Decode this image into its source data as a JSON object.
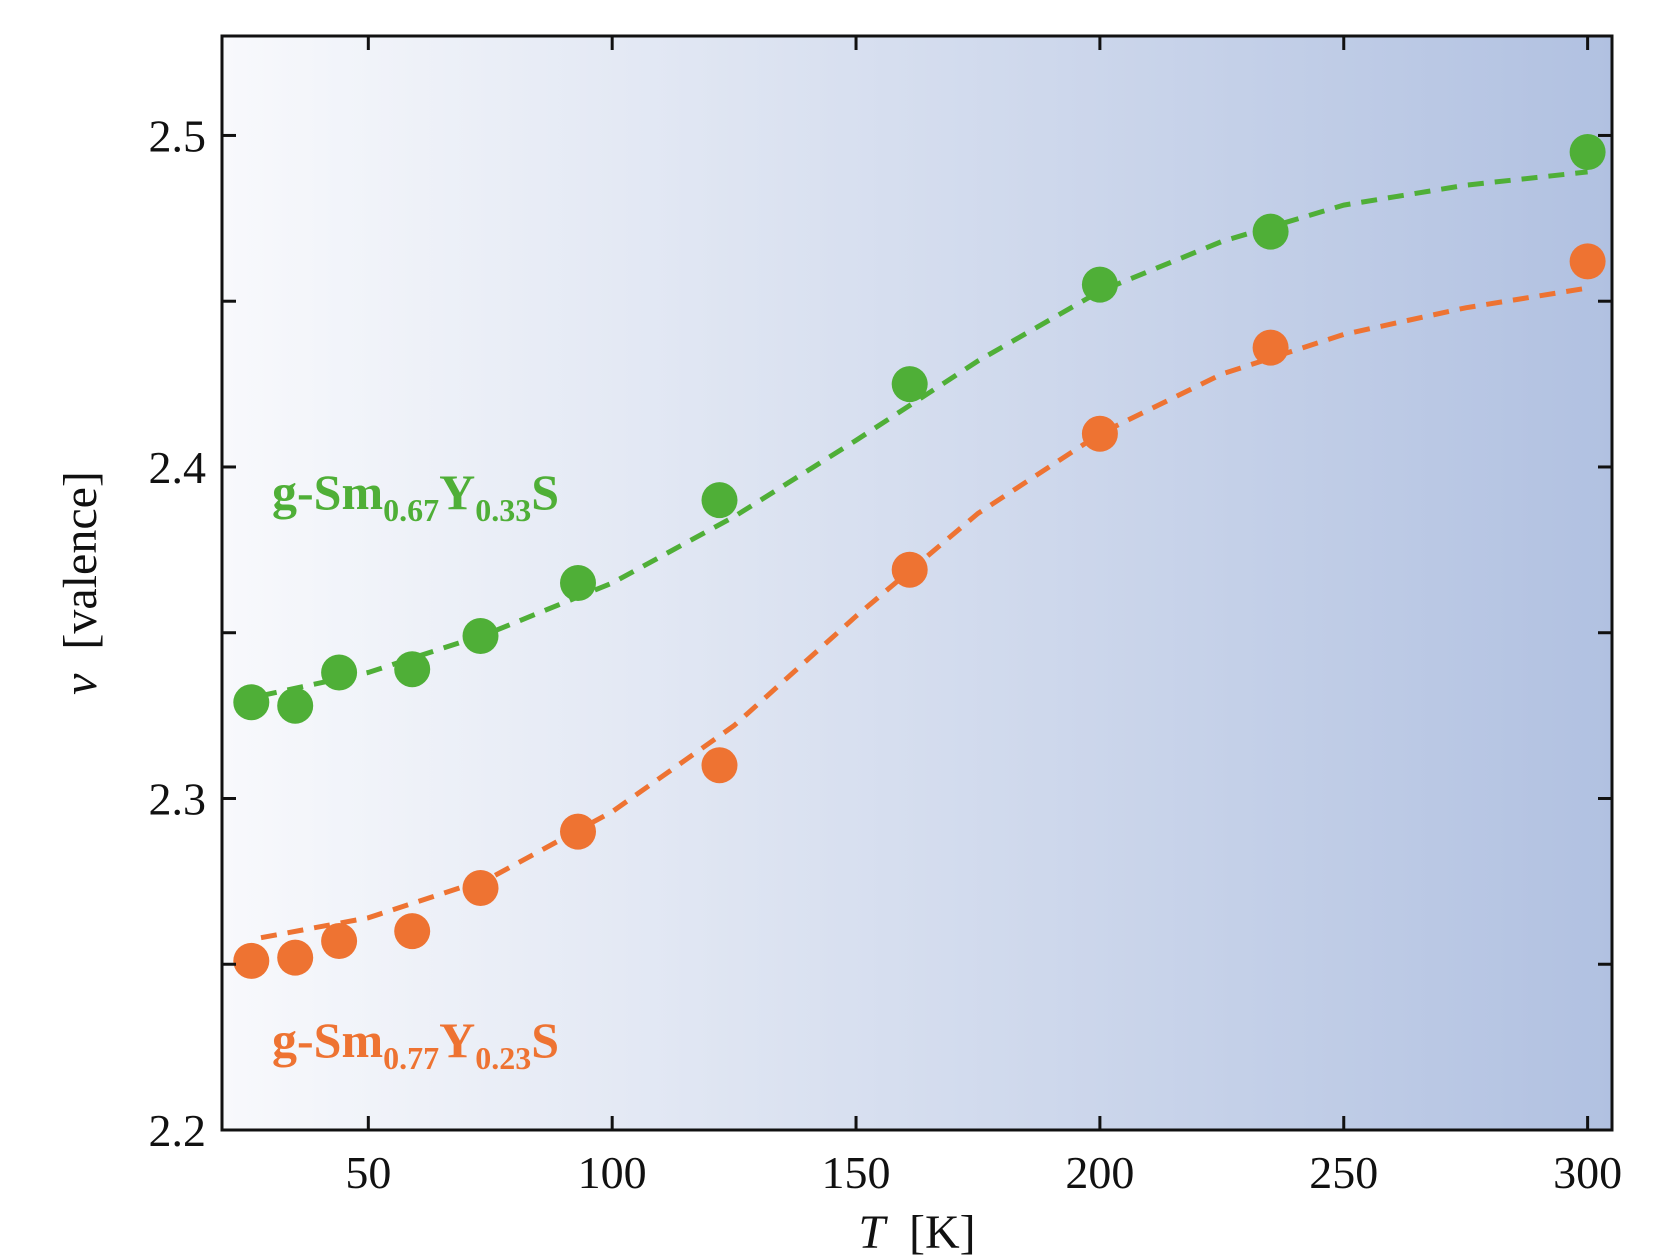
{
  "chart_data": {
    "type": "scatter",
    "title": "",
    "xlabel": {
      "symbol": "T",
      "unit": "[K]"
    },
    "ylabel": {
      "symbol": "v",
      "unit": "[valence]"
    },
    "xlim": [
      20,
      305
    ],
    "ylim": [
      2.2,
      2.53
    ],
    "x_ticks": [
      50,
      100,
      150,
      200,
      250,
      300
    ],
    "x_tick_labels": [
      "50",
      "100",
      "150",
      "200",
      "250",
      "300"
    ],
    "y_ticks": [
      2.2,
      2.3,
      2.4,
      2.5
    ],
    "y_tick_labels": [
      "2.2",
      "2.3",
      "2.4",
      "2.5"
    ],
    "y_minor_ticks": [
      2.25,
      2.35,
      2.45
    ],
    "grid": false,
    "background": {
      "gradient_from": "#f8f9fc",
      "gradient_to": "#b1c1e1"
    },
    "series": [
      {
        "name": "g-Sm0.67Y0.33S",
        "label": {
          "prefix": "g-Sm",
          "sub1": "0.67",
          "mid": "Y",
          "sub2": "0.33",
          "suffix": "S"
        },
        "color": "#4faf37",
        "x": [
          26,
          35,
          44,
          59,
          73,
          93,
          122,
          161,
          200,
          235,
          300
        ],
        "y": [
          2.329,
          2.328,
          2.338,
          2.339,
          2.349,
          2.365,
          2.39,
          2.425,
          2.455,
          2.471,
          2.495
        ],
        "fit_x": [
          28,
          50,
          75,
          100,
          125,
          150,
          175,
          200,
          225,
          250,
          275,
          300
        ],
        "fit_y": [
          2.331,
          2.338,
          2.35,
          2.365,
          2.385,
          2.408,
          2.432,
          2.453,
          2.468,
          2.479,
          2.485,
          2.489
        ]
      },
      {
        "name": "g-Sm0.77Y0.23S",
        "label": {
          "prefix": "g-Sm",
          "sub1": "0.77",
          "mid": "Y",
          "sub2": "0.23",
          "suffix": "S"
        },
        "color": "#ee7332",
        "x": [
          26,
          35,
          44,
          59,
          73,
          93,
          122,
          161,
          200,
          235,
          300
        ],
        "y": [
          2.251,
          2.252,
          2.257,
          2.26,
          2.273,
          2.29,
          2.31,
          2.369,
          2.41,
          2.436,
          2.462
        ],
        "fit_x": [
          28,
          50,
          75,
          100,
          125,
          150,
          175,
          200,
          225,
          250,
          275,
          300
        ],
        "fit_y": [
          2.258,
          2.264,
          2.276,
          2.296,
          2.322,
          2.355,
          2.386,
          2.41,
          2.428,
          2.44,
          2.448,
          2.454
        ]
      }
    ]
  }
}
